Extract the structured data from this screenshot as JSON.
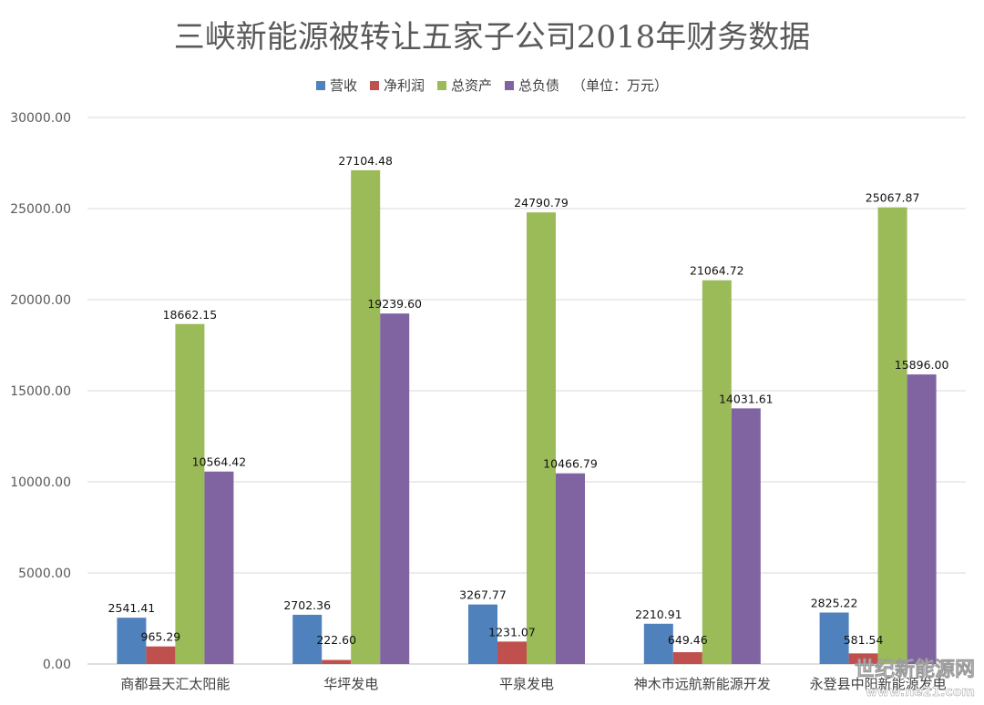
{
  "chart_data": {
    "type": "bar",
    "title": "三峡新能源被转让五家子公司2018年财务数据",
    "unit_note": "（单位：万元）",
    "categories": [
      "商都县天汇太阳能",
      "华坪发电",
      "平泉发电",
      "神木市远航新能源开发",
      "永登县中阳新能源发电"
    ],
    "series": [
      {
        "name": "营收",
        "color": "#4f81bd",
        "values": [
          2541.41,
          2702.36,
          3267.77,
          2210.91,
          2825.22
        ]
      },
      {
        "name": "净利润",
        "color": "#c0504d",
        "values": [
          965.29,
          222.6,
          1231.07,
          649.46,
          581.54
        ]
      },
      {
        "name": "总资产",
        "color": "#9bbb59",
        "values": [
          18662.15,
          27104.48,
          24790.79,
          21064.72,
          25067.87
        ]
      },
      {
        "name": "总负债",
        "color": "#8064a2",
        "values": [
          10564.42,
          19239.6,
          10466.79,
          14031.61,
          15896.0
        ]
      }
    ],
    "y_ticks": [
      "0.00",
      "5000.00",
      "10000.00",
      "15000.00",
      "20000.00",
      "25000.00",
      "30000.00"
    ],
    "ylim": [
      0,
      30000
    ],
    "grid": true,
    "legend_position": "top"
  },
  "watermark": {
    "line1": "世纪新能源网",
    "line2": "www.ne21.com"
  }
}
